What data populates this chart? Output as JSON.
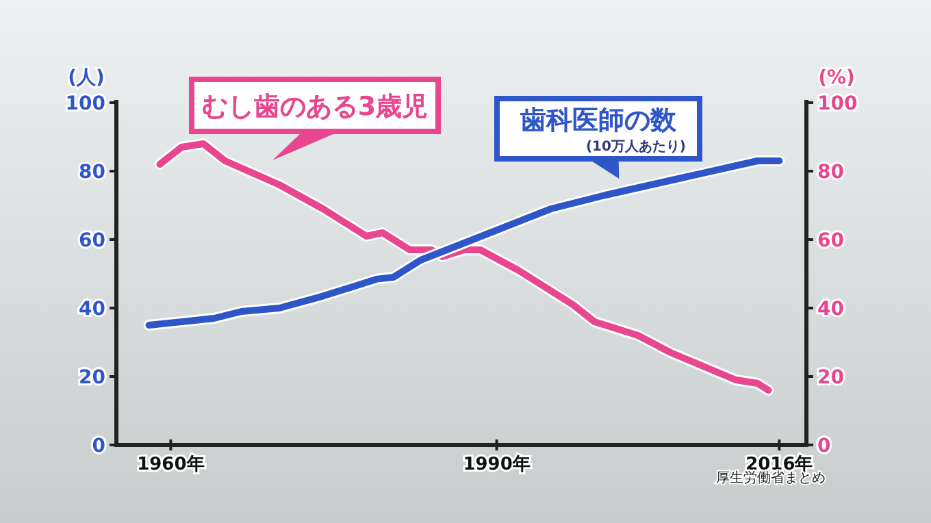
{
  "chart_data": {
    "type": "line",
    "ylabel": "(人)",
    "y2label": "(%)",
    "xlim": [
      1955,
      2018.5
    ],
    "xticks": [
      {
        "value": 1960,
        "label": "1960年"
      },
      {
        "value": 1990,
        "label": "1990年"
      },
      {
        "value": 2016,
        "label": "2016年"
      }
    ],
    "ylim": [
      0,
      100
    ],
    "yticks": [
      0,
      20,
      40,
      60,
      80,
      100
    ],
    "y2lim": [
      0,
      100
    ],
    "y2ticks": [
      0,
      20,
      40,
      60,
      80,
      100
    ],
    "series": [
      {
        "name": "むし歯のある3歳児",
        "color": "#e8468f",
        "axis": "y2",
        "x": [
          1959,
          1961,
          1963,
          1965,
          1970,
          1974,
          1978,
          1979.5,
          1982,
          1984,
          1985,
          1987,
          1988.5,
          1992,
          1997,
          1999,
          2003,
          2006,
          2009,
          2012,
          2014,
          2015
        ],
        "values": [
          82,
          87,
          88,
          83,
          76,
          69,
          61,
          62,
          57,
          57,
          55,
          57,
          57,
          51,
          41,
          36,
          32,
          27,
          23,
          19,
          18,
          16
        ]
      },
      {
        "name": "歯科医師の数",
        "color": "#2e56c8",
        "axis": "y",
        "x": [
          1958,
          1964,
          1966.5,
          1970,
          1974,
          1976,
          1979,
          1980.5,
          1983,
          1987,
          1995,
          2000,
          2007,
          2014,
          2016
        ],
        "values": [
          35,
          37,
          39,
          40,
          43.5,
          45.5,
          48.5,
          49,
          54,
          59,
          69,
          73,
          78,
          83,
          83
        ]
      }
    ],
    "annotations": [
      "(10万人あたり)",
      "厚生労働省まとめ"
    ],
    "line_style": "solid",
    "marker": "none",
    "grid": false,
    "legend": "top"
  }
}
